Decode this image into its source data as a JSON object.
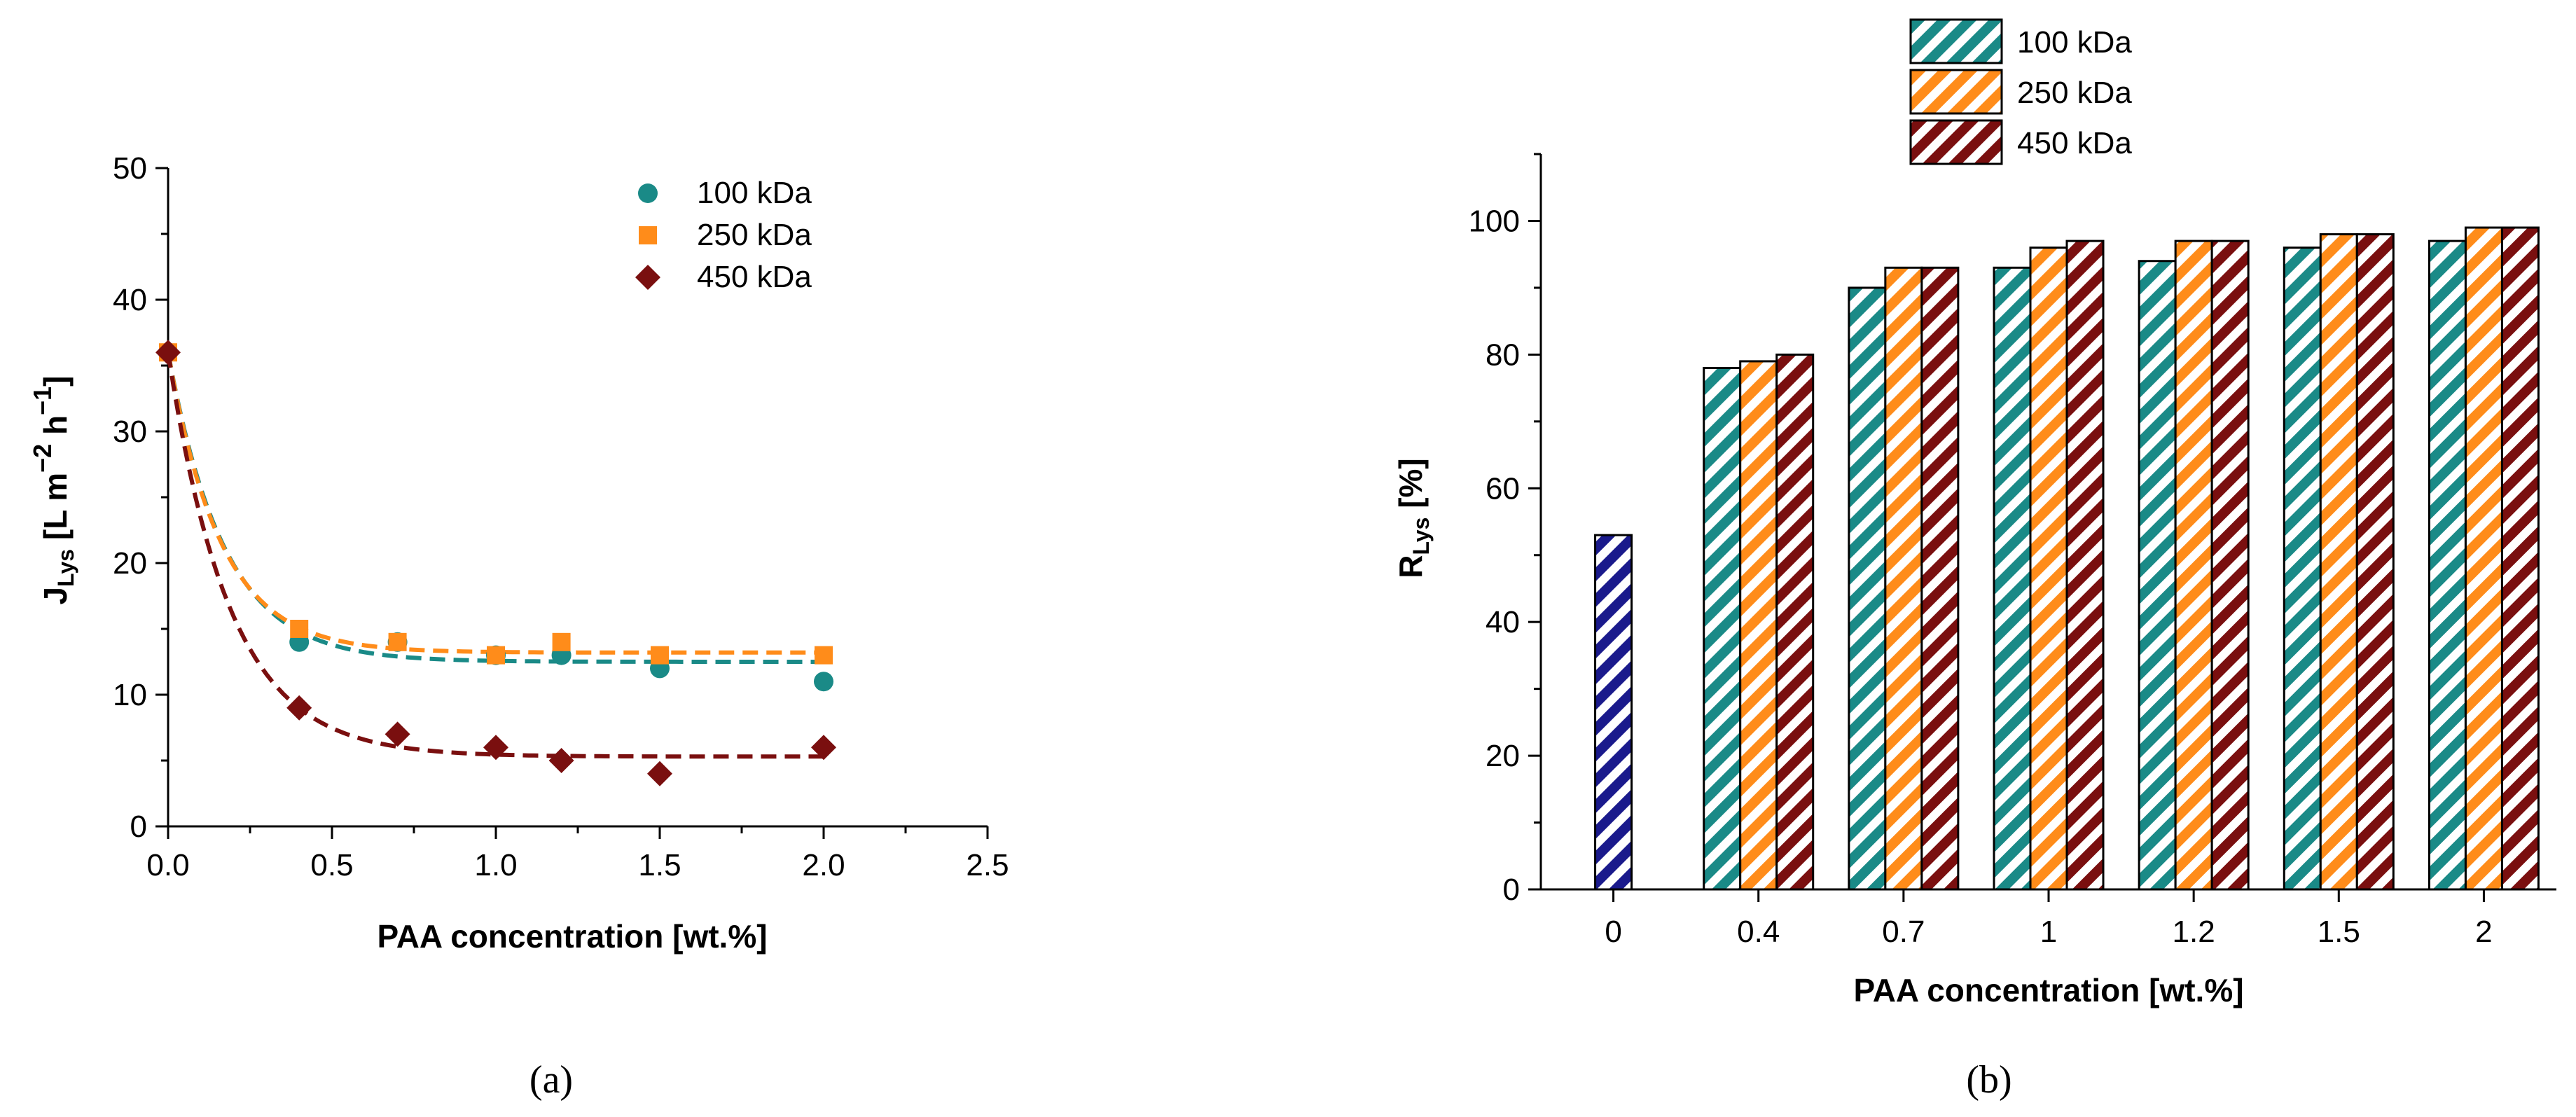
{
  "chart_data": [
    {
      "type": "scatter",
      "panel_label": "(a)",
      "xlabel": "PAA concentration [wt.%]",
      "ylabel": {
        "main": "J",
        "sub": "Lys",
        "rest": " [L m",
        "sup1": "−2",
        "mid": " h",
        "sup2": "−1",
        "end": "]"
      },
      "xlim": [
        0,
        2.5
      ],
      "ylim": [
        0,
        50
      ],
      "xticks": [
        "0.0",
        "0.5",
        "1.0",
        "1.5",
        "2.0",
        "2.5"
      ],
      "yticks": [
        "0",
        "10",
        "20",
        "30",
        "40",
        "50"
      ],
      "legend_position": "top-right",
      "series": [
        {
          "name": "100 kDa",
          "marker": "circle",
          "color": "#1a8a87",
          "x": [
            0,
            0.4,
            0.7,
            1.0,
            1.2,
            1.5,
            2.0
          ],
          "y": [
            36,
            14,
            14,
            13,
            13,
            12,
            11
          ],
          "fit": {
            "a": 23.5,
            "k": 5.8,
            "c": 12.5
          }
        },
        {
          "name": "250 kDa",
          "marker": "square",
          "color": "#ff8c1a",
          "x": [
            0,
            0.4,
            0.7,
            1.0,
            1.2,
            1.5,
            2.0
          ],
          "y": [
            36,
            15,
            14,
            13,
            14,
            13,
            13
          ],
          "fit": {
            "a": 22.8,
            "k": 6.2,
            "c": 13.2
          }
        },
        {
          "name": "450 kDa",
          "marker": "diamond",
          "color": "#7a0f0f",
          "x": [
            0,
            0.4,
            0.7,
            1.0,
            1.2,
            1.5,
            2.0
          ],
          "y": [
            36,
            9,
            7,
            6,
            5,
            4,
            6
          ],
          "fit": {
            "a": 30.7,
            "k": 5.3,
            "c": 5.3
          }
        }
      ]
    },
    {
      "type": "bar",
      "panel_label": "(b)",
      "xlabel": "PAA concentration [wt.%]",
      "ylabel": {
        "main": "R",
        "sub": "Lys",
        "rest": " [%]"
      },
      "ylim": [
        0,
        110
      ],
      "yticks": [
        "0",
        "20",
        "40",
        "60",
        "80",
        "100"
      ],
      "categories": [
        "0",
        "0.4",
        "0.7",
        "1",
        "1.2",
        "1.5",
        "2"
      ],
      "legend_position": "top",
      "control": {
        "category": "0",
        "value": 53,
        "color": "#1a1a8c"
      },
      "series": [
        {
          "name": "100 kDa",
          "color": "#1a8a87",
          "values": [
            null,
            78,
            90,
            93,
            94,
            96,
            97
          ]
        },
        {
          "name": "250 kDa",
          "color": "#ff8c1a",
          "values": [
            null,
            79,
            93,
            96,
            97,
            98,
            99
          ]
        },
        {
          "name": "450 kDa",
          "color": "#7a0f0f",
          "values": [
            null,
            80,
            93,
            97,
            97,
            98,
            99
          ]
        }
      ]
    }
  ]
}
